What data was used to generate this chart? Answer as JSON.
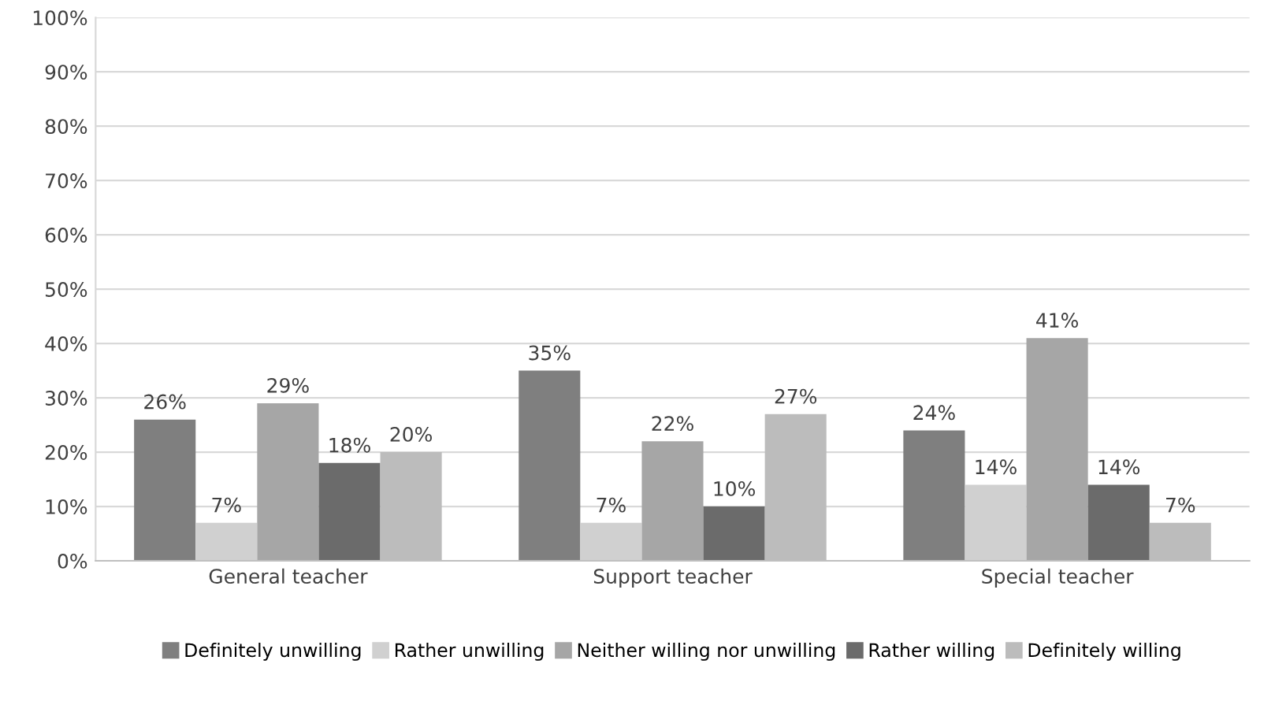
{
  "chart_data": {
    "type": "bar",
    "categories": [
      "General teacher",
      "Support teacher",
      "Special teacher"
    ],
    "series": [
      {
        "name": "Definitely unwilling",
        "color": "#7f7f7f",
        "values": [
          26,
          35,
          24
        ]
      },
      {
        "name": "Rather unwilling",
        "color": "#d0d0d0",
        "values": [
          7,
          7,
          14
        ]
      },
      {
        "name": "Neither willing nor unwilling",
        "color": "#a6a6a6",
        "values": [
          29,
          22,
          41
        ]
      },
      {
        "name": "Rather willing",
        "color": "#6b6b6b",
        "values": [
          18,
          10,
          14
        ]
      },
      {
        "name": "Definitely willing",
        "color": "#bcbcbc",
        "values": [
          20,
          27,
          7
        ]
      }
    ],
    "ylim": [
      0,
      100
    ],
    "yticks": [
      {
        "value": 0,
        "label": "0%"
      },
      {
        "value": 10,
        "label": "10%"
      },
      {
        "value": 20,
        "label": "20%"
      },
      {
        "value": 30,
        "label": "30%"
      },
      {
        "value": 40,
        "label": "40%"
      },
      {
        "value": 50,
        "label": "50%"
      },
      {
        "value": 60,
        "label": "60%"
      },
      {
        "value": 70,
        "label": "70%"
      },
      {
        "value": 80,
        "label": "80%"
      },
      {
        "value": 90,
        "label": "90%"
      },
      {
        "value": 100,
        "label": "100%"
      }
    ],
    "grid": "y",
    "legend": "bottom",
    "value_labels": [
      [
        "26%",
        "35%",
        "24%"
      ],
      [
        "7%",
        "7%",
        "14%"
      ],
      [
        "29%",
        "22%",
        "41%"
      ],
      [
        "18%",
        "10%",
        "14%"
      ],
      [
        "20%",
        "27%",
        "7%"
      ]
    ]
  }
}
